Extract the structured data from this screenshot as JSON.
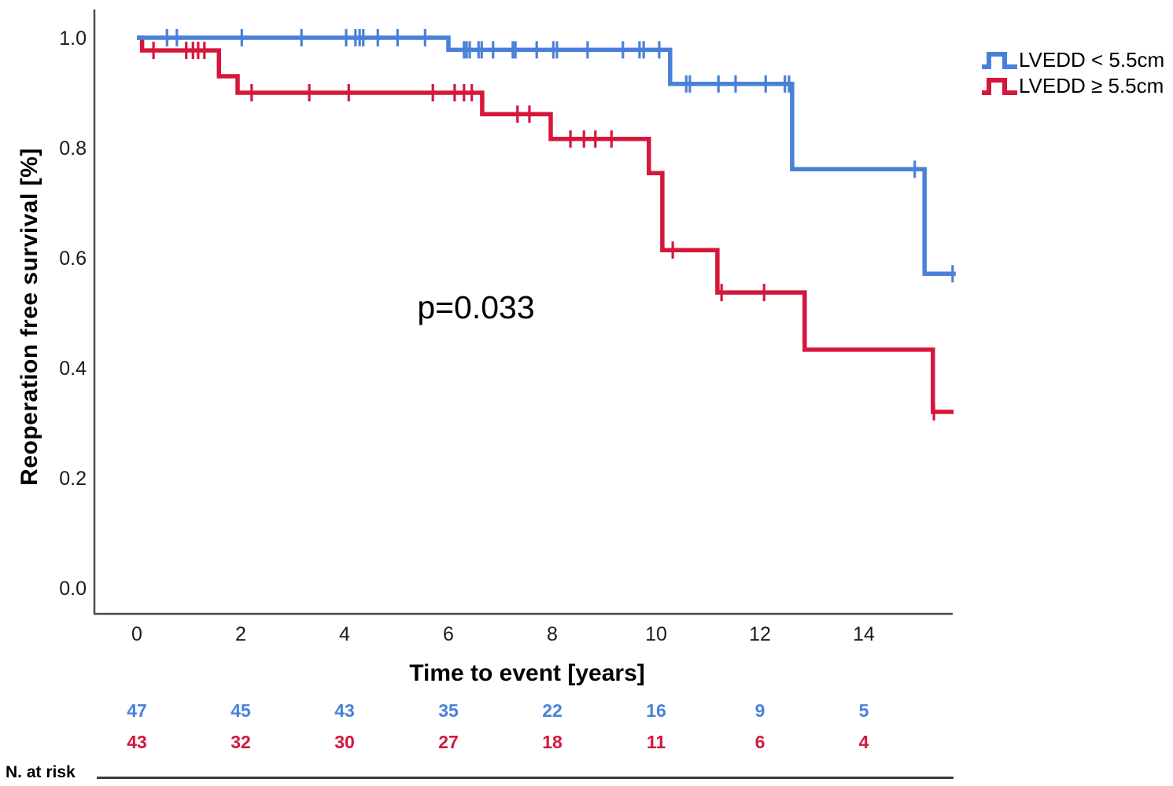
{
  "labels": {
    "n_at_risk": "N. at risk"
  },
  "chart_data": {
    "type": "line",
    "subtype": "kaplan-meier-step",
    "title": "",
    "xlabel": "Time to event [years]",
    "ylabel": "Reoperation free survival [%]",
    "annotation": "p=0.033",
    "xlim": [
      -0.82,
      15.9
    ],
    "ylim": [
      0.0,
      1.0
    ],
    "x_ticks": [
      0,
      2,
      4,
      6,
      8,
      10,
      12,
      14
    ],
    "y_ticks": [
      {
        "v": 1.0,
        "label": "1.0"
      },
      {
        "v": 0.8,
        "label": "0.8"
      },
      {
        "v": 0.6,
        "label": "0.6"
      },
      {
        "v": 0.4,
        "label": "0.4"
      },
      {
        "v": 0.2,
        "label": "0.2"
      },
      {
        "v": 0.0,
        "label": "0.0"
      }
    ],
    "grid": false,
    "legend_position": "top-right",
    "axis_color": "#4d4d4d",
    "series": [
      {
        "name": "LVEDD ≥ 5.5cm",
        "color": "#D5173C",
        "steps": [
          [
            0,
            1.0
          ],
          [
            0.1,
            1.0
          ],
          [
            0.1,
            0.977
          ],
          [
            1.58,
            0.977
          ],
          [
            1.58,
            0.93
          ],
          [
            1.94,
            0.93
          ],
          [
            1.94,
            0.9
          ],
          [
            6.65,
            0.9
          ],
          [
            6.65,
            0.861
          ],
          [
            7.97,
            0.861
          ],
          [
            7.97,
            0.816
          ],
          [
            9.86,
            0.816
          ],
          [
            9.86,
            0.754
          ],
          [
            10.12,
            0.754
          ],
          [
            10.12,
            0.614
          ],
          [
            11.18,
            0.614
          ],
          [
            11.18,
            0.537
          ],
          [
            12.86,
            0.537
          ],
          [
            12.86,
            0.433
          ],
          [
            15.33,
            0.433
          ],
          [
            15.33,
            0.32
          ],
          [
            15.73,
            0.32
          ]
        ],
        "censors": [
          [
            0.32,
            0.977
          ],
          [
            0.95,
            0.977
          ],
          [
            1.08,
            0.977
          ],
          [
            1.18,
            0.977
          ],
          [
            1.3,
            0.977
          ],
          [
            2.21,
            0.9
          ],
          [
            3.32,
            0.9
          ],
          [
            4.08,
            0.9
          ],
          [
            5.7,
            0.9
          ],
          [
            6.12,
            0.9
          ],
          [
            6.3,
            0.9
          ],
          [
            6.45,
            0.9
          ],
          [
            7.33,
            0.861
          ],
          [
            7.56,
            0.861
          ],
          [
            8.35,
            0.816
          ],
          [
            8.61,
            0.816
          ],
          [
            8.83,
            0.816
          ],
          [
            9.14,
            0.816
          ],
          [
            10.32,
            0.614
          ],
          [
            11.26,
            0.537
          ],
          [
            12.08,
            0.537
          ],
          [
            15.35,
            0.32
          ]
        ],
        "at_risk": [
          43,
          32,
          30,
          27,
          18,
          11,
          6,
          4
        ]
      },
      {
        "name": "LVEDD < 5.5cm",
        "color": "#4981D9",
        "steps": [
          [
            0,
            1.0
          ],
          [
            6.0,
            1.0
          ],
          [
            6.0,
            0.978
          ],
          [
            10.27,
            0.978
          ],
          [
            10.27,
            0.916
          ],
          [
            12.62,
            0.916
          ],
          [
            12.62,
            0.761
          ],
          [
            15.17,
            0.761
          ],
          [
            15.17,
            0.571
          ],
          [
            15.77,
            0.571
          ]
        ],
        "censors": [
          [
            0.58,
            1.0
          ],
          [
            0.77,
            1.0
          ],
          [
            2.02,
            1.0
          ],
          [
            3.17,
            1.0
          ],
          [
            4.03,
            1.0
          ],
          [
            4.21,
            1.0
          ],
          [
            4.29,
            1.0
          ],
          [
            4.36,
            1.0
          ],
          [
            4.64,
            1.0
          ],
          [
            5.02,
            1.0
          ],
          [
            5.55,
            1.0
          ],
          [
            6.3,
            0.978
          ],
          [
            6.35,
            0.978
          ],
          [
            6.41,
            0.978
          ],
          [
            6.58,
            0.978
          ],
          [
            6.64,
            0.978
          ],
          [
            6.86,
            0.978
          ],
          [
            7.24,
            0.978
          ],
          [
            7.29,
            0.978
          ],
          [
            7.7,
            0.978
          ],
          [
            8.02,
            0.978
          ],
          [
            8.09,
            0.978
          ],
          [
            8.68,
            0.978
          ],
          [
            9.36,
            0.978
          ],
          [
            9.68,
            0.978
          ],
          [
            9.76,
            0.978
          ],
          [
            10.06,
            0.978
          ],
          [
            10.58,
            0.916
          ],
          [
            10.65,
            0.916
          ],
          [
            11.2,
            0.916
          ],
          [
            11.53,
            0.916
          ],
          [
            12.11,
            0.916
          ],
          [
            12.48,
            0.916
          ],
          [
            12.56,
            0.916
          ],
          [
            14.98,
            0.761
          ],
          [
            15.71,
            0.571
          ]
        ],
        "at_risk": [
          47,
          45,
          43,
          35,
          22,
          16,
          9,
          5
        ]
      }
    ]
  }
}
